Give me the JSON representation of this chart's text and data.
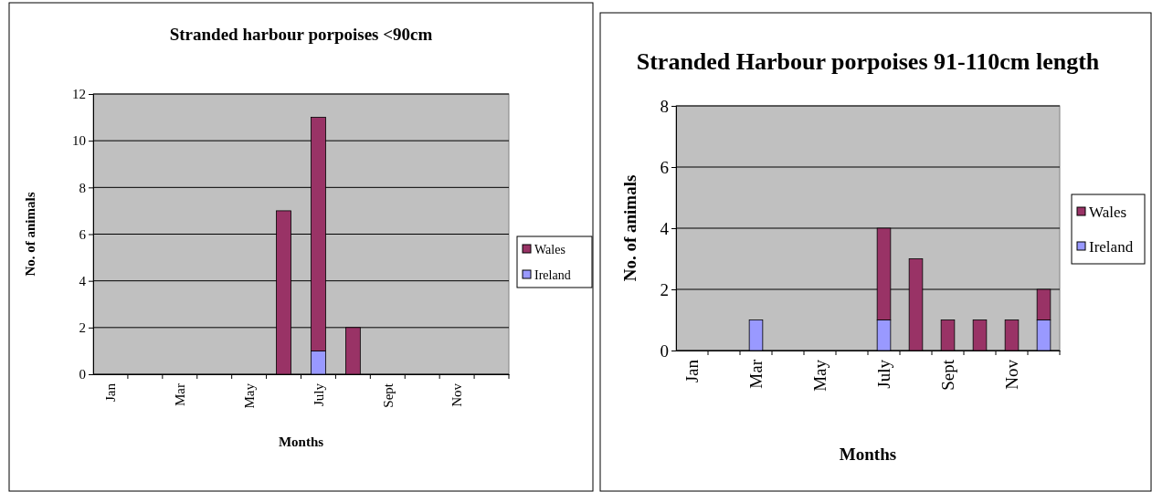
{
  "chart_data": [
    {
      "type": "bar",
      "title": "Stranded harbour porpoises <90cm",
      "xlabel": "Months",
      "ylabel": "No. of animals",
      "categories": [
        "Jan",
        null,
        "Mar",
        null,
        "May",
        null,
        "July",
        null,
        "Sept",
        null,
        "Nov",
        null
      ],
      "stacked": true,
      "ylim": [
        0,
        12
      ],
      "yticks": [
        0,
        2,
        4,
        6,
        8,
        10,
        12
      ],
      "grid": "y",
      "legend": "right",
      "series": [
        {
          "name": "Ireland",
          "color": "#9999ff",
          "values": [
            0,
            0,
            0,
            0,
            0,
            0,
            1,
            0,
            0,
            0,
            0,
            0
          ]
        },
        {
          "name": "Wales",
          "color": "#993366",
          "values": [
            0,
            0,
            0,
            0,
            0,
            7,
            10,
            2,
            0,
            0,
            0,
            0
          ]
        }
      ]
    },
    {
      "type": "bar",
      "title": "Stranded Harbour porpoises 91-110cm length",
      "xlabel": "Months",
      "ylabel": "No. of animals",
      "categories": [
        "Jan",
        null,
        "Mar",
        null,
        "May",
        null,
        "July",
        null,
        "Sept",
        null,
        "Nov",
        null
      ],
      "stacked": true,
      "ylim": [
        0,
        8
      ],
      "yticks": [
        0,
        2,
        4,
        6,
        8
      ],
      "grid": "y",
      "legend": "right",
      "series": [
        {
          "name": "Ireland",
          "color": "#9999ff",
          "values": [
            0,
            0,
            1,
            0,
            0,
            0,
            1,
            0,
            0,
            0,
            0,
            1
          ]
        },
        {
          "name": "Wales",
          "color": "#993366",
          "values": [
            0,
            0,
            0,
            0,
            0,
            0,
            3,
            3,
            1,
            1,
            1,
            1
          ]
        }
      ]
    }
  ]
}
